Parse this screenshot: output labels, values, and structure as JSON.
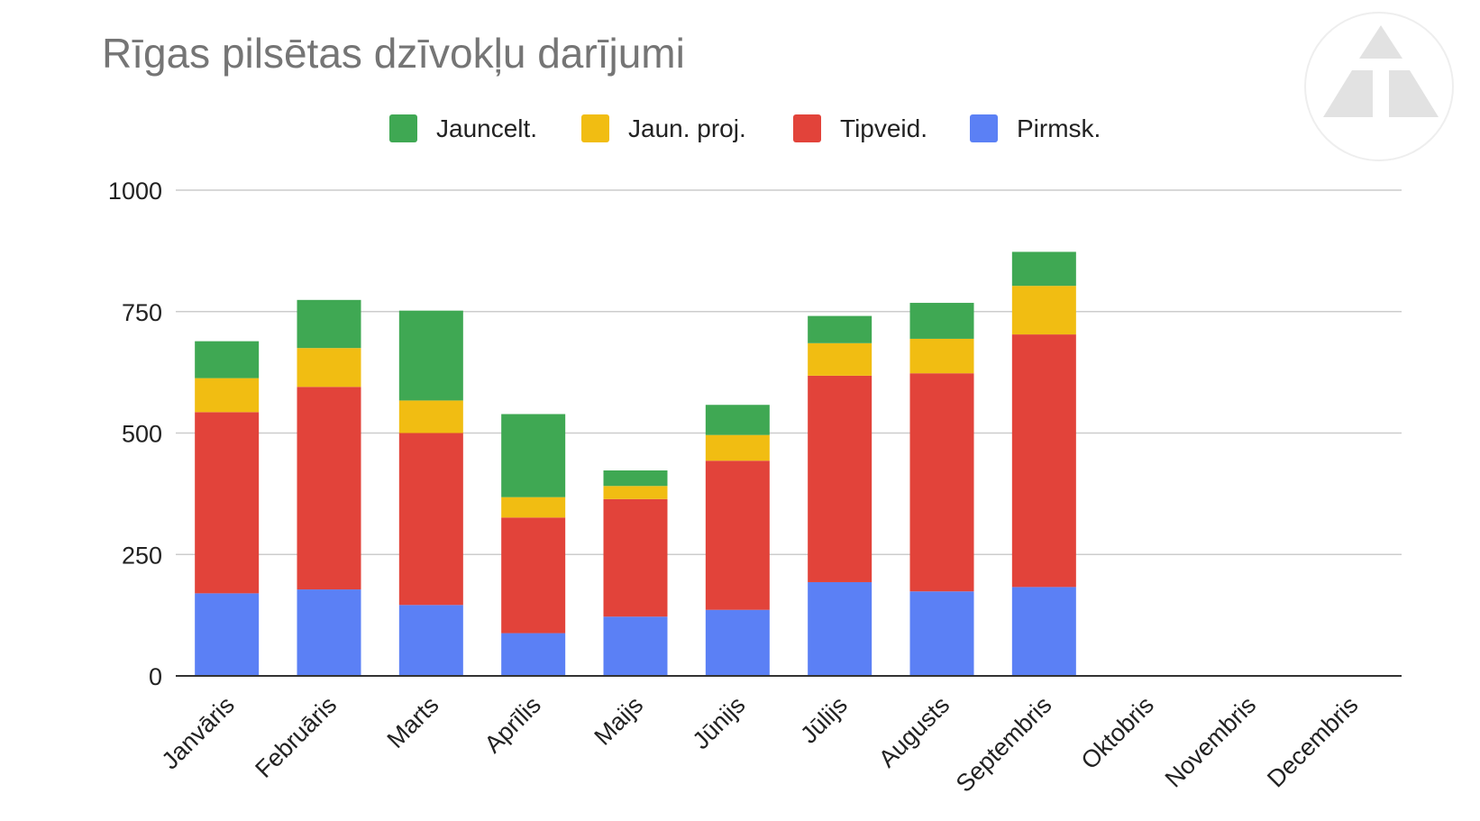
{
  "chart_data": {
    "type": "bar",
    "stacked": true,
    "title": "Rīgas pilsētas dzīvokļu darījumi",
    "xlabel": "",
    "ylabel": "",
    "ylim": [
      0,
      1000
    ],
    "yticks": [
      0,
      250,
      500,
      750,
      1000
    ],
    "grid": true,
    "legend_position": "top",
    "categories": [
      "Janvāris",
      "Februāris",
      "Marts",
      "Aprīlis",
      "Maijs",
      "Jūnijs",
      "Jūlijs",
      "Augusts",
      "Septembris",
      "Oktobris",
      "Novembris",
      "Decembris"
    ],
    "series": [
      {
        "name": "Pirmsk.",
        "color": "#5b80f5",
        "values": [
          170,
          178,
          146,
          88,
          122,
          136,
          193,
          174,
          183,
          null,
          null,
          null
        ]
      },
      {
        "name": "Tipveid.",
        "color": "#e2433a",
        "values": [
          373,
          417,
          354,
          238,
          242,
          307,
          425,
          449,
          520,
          null,
          null,
          null
        ]
      },
      {
        "name": "Jaun. proj.",
        "color": "#f1bd12",
        "values": [
          70,
          80,
          67,
          42,
          27,
          53,
          67,
          71,
          100,
          null,
          null,
          null
        ]
      },
      {
        "name": "Jauncelt.",
        "color": "#3fa853",
        "values": [
          76,
          99,
          185,
          171,
          32,
          62,
          56,
          74,
          70,
          null,
          null,
          null
        ]
      }
    ],
    "legend_order": [
      "Jauncelt.",
      "Jaun. proj.",
      "Tipveid.",
      "Pirmsk."
    ]
  },
  "logo": {
    "icon": "triangle-logo-icon",
    "color": "#e2e2e2"
  }
}
